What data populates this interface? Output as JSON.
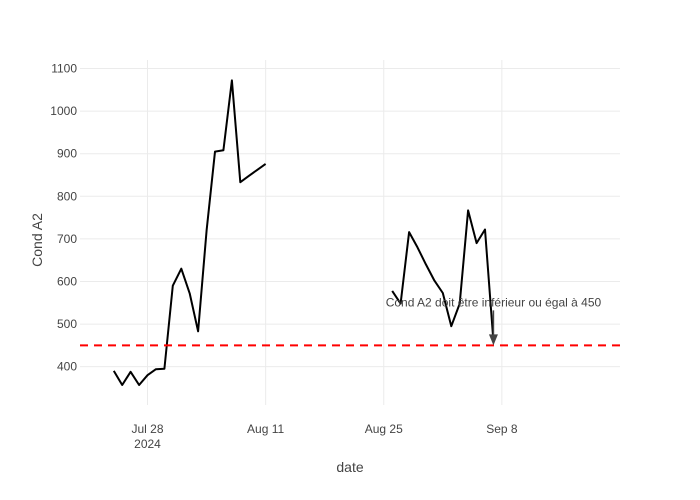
{
  "chart_data": {
    "type": "line",
    "xlabel": "date",
    "ylabel": "Cond A2",
    "x_tick_labels": [
      {
        "date": "2024-07-28",
        "label": "Jul 28",
        "sublabel": "2024"
      },
      {
        "date": "2024-08-11",
        "label": "Aug 11",
        "sublabel": ""
      },
      {
        "date": "2024-08-25",
        "label": "Aug 25",
        "sublabel": ""
      },
      {
        "date": "2024-09-08",
        "label": "Sep 8",
        "sublabel": ""
      }
    ],
    "y_ticks": [
      400,
      500,
      600,
      700,
      800,
      900,
      1000,
      1100
    ],
    "xlim": [
      "2024-07-20",
      "2024-09-22"
    ],
    "ylim": [
      310,
      1120
    ],
    "grid": true,
    "series": [
      {
        "color": "#000000",
        "segments": [
          [
            [
              "2024-07-24",
              390
            ],
            [
              "2024-07-25",
              357
            ],
            [
              "2024-07-26",
              388
            ],
            [
              "2024-07-27",
              357
            ],
            [
              "2024-07-28",
              380
            ],
            [
              "2024-07-29",
              394
            ],
            [
              "2024-07-30",
              395
            ],
            [
              "2024-07-31",
              590
            ],
            [
              "2024-08-01",
              630
            ],
            [
              "2024-08-02",
              572
            ],
            [
              "2024-08-03",
              483
            ],
            [
              "2024-08-04",
              720
            ],
            [
              "2024-08-05",
              905
            ],
            [
              "2024-08-06",
              908
            ],
            [
              "2024-08-07",
              1072
            ],
            [
              "2024-08-08",
              833
            ],
            [
              "2024-08-09",
              848
            ],
            [
              "2024-08-10",
              862
            ],
            [
              "2024-08-11",
              876
            ]
          ],
          [
            [
              "2024-08-26",
              578
            ],
            [
              "2024-08-27",
              548
            ],
            [
              "2024-08-28",
              716
            ],
            [
              "2024-08-29",
              680
            ],
            [
              "2024-08-30",
              640
            ],
            [
              "2024-08-31",
              602
            ],
            [
              "2024-09-01",
              573
            ],
            [
              "2024-09-02",
              495
            ],
            [
              "2024-09-03",
              548
            ],
            [
              "2024-09-04",
              767
            ],
            [
              "2024-09-05",
              690
            ],
            [
              "2024-09-06",
              722
            ],
            [
              "2024-09-07",
              460
            ]
          ]
        ]
      }
    ],
    "threshold": {
      "y": 450,
      "color": "#ff0000",
      "style": "dashed"
    },
    "annotation": {
      "text": "Cond A2 doit être inférieur ou égal à 450",
      "x": "2024-09-07",
      "y": 450,
      "arrowhead_color": "#444444"
    }
  }
}
